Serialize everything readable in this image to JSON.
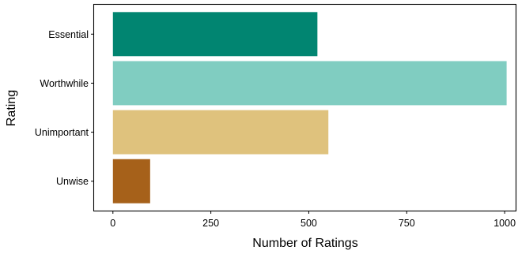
{
  "chart_data": {
    "type": "bar",
    "orientation": "horizontal",
    "title": "",
    "xlabel": "Number of Ratings",
    "ylabel": "Rating",
    "categories": [
      "Essential",
      "Worthwhile",
      "Unimportant",
      "Unwise"
    ],
    "values": [
      522,
      1005,
      550,
      95
    ],
    "colors": [
      "#018571",
      "#80cdc1",
      "#dfc27d",
      "#a6611a"
    ],
    "xlim": [
      -48,
      1028
    ],
    "xticks": [
      0,
      250,
      500,
      750,
      1000
    ],
    "xtick_labels": [
      "0",
      "250",
      "500",
      "750",
      "1000"
    ],
    "grid": false,
    "legend": "none"
  }
}
